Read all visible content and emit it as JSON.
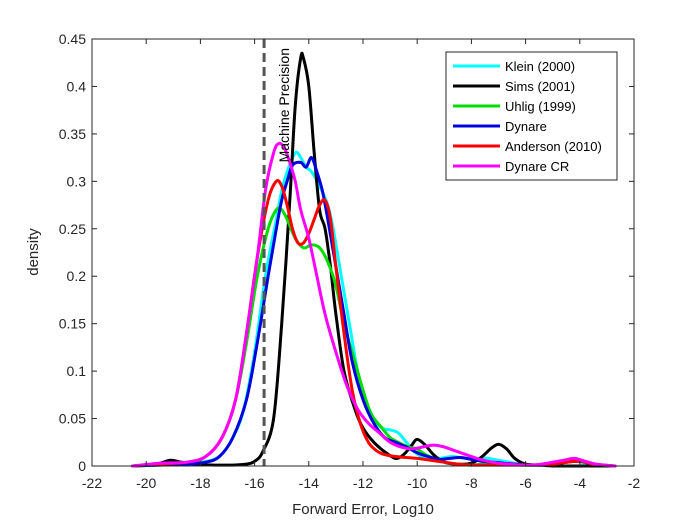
{
  "chart_data": {
    "type": "line",
    "xlabel": "Forward Error, Log10",
    "ylabel": "density",
    "xlim": [
      -22,
      -2
    ],
    "ylim": [
      0,
      0.45
    ],
    "xticks": [
      -22,
      -20,
      -18,
      -16,
      -14,
      -12,
      -10,
      -8,
      -6,
      -4,
      -2
    ],
    "yticks": [
      0,
      0.05,
      0.1,
      0.15,
      0.2,
      0.25,
      0.3,
      0.35,
      0.4,
      0.45
    ],
    "xtick_labels": [
      "-22",
      "-20",
      "-18",
      "-16",
      "-14",
      "-12",
      "-10",
      "-8",
      "-6",
      "-4",
      "-2"
    ],
    "ytick_labels": [
      "0",
      "0.05",
      "0.1",
      "0.15",
      "0.2",
      "0.25",
      "0.3",
      "0.35",
      "0.4",
      "0.45"
    ],
    "grid": false,
    "legend_position": "top-right",
    "annotation": {
      "text": "Machine Precision",
      "x": -15.65,
      "line_style": "dashed",
      "color": "#555555"
    },
    "series": [
      {
        "name": "Klein (2000)",
        "color": "#00ffff",
        "x": [
          -20.5,
          -19.5,
          -18.8,
          -18,
          -17.3,
          -16.8,
          -16.4,
          -16,
          -15.6,
          -15.2,
          -15,
          -14.8,
          -14.5,
          -14.3,
          -14.1,
          -13.9,
          -13.6,
          -13.3,
          -13.1,
          -12.8,
          -12.5,
          -12.2,
          -11.9,
          -11.6,
          -11.3,
          -11,
          -10.7,
          -10.4,
          -10.1,
          -9.7,
          -9.2,
          -8.7,
          -8.2,
          -7.8,
          -7.4,
          -7,
          -6.6,
          -6.2,
          -5.5,
          -4.8,
          -4.2,
          -3.6,
          -2.7
        ],
        "y": [
          0,
          0.002,
          0.004,
          0.004,
          0.01,
          0.03,
          0.06,
          0.12,
          0.2,
          0.26,
          0.29,
          0.31,
          0.33,
          0.325,
          0.315,
          0.31,
          0.295,
          0.275,
          0.25,
          0.2,
          0.15,
          0.1,
          0.07,
          0.05,
          0.04,
          0.038,
          0.035,
          0.025,
          0.015,
          0.008,
          0.008,
          0.01,
          0.008,
          0.008,
          0.008,
          0.006,
          0.004,
          0.002,
          0.001,
          0.004,
          0.005,
          0.002,
          0
        ]
      },
      {
        "name": "Sims (2001)",
        "color": "#000000",
        "x": [
          -20.5,
          -20,
          -19.5,
          -19.1,
          -18.7,
          -18.2,
          -17.5,
          -16.8,
          -16.3,
          -16,
          -15.7,
          -15.3,
          -15,
          -14.7,
          -14.5,
          -14.3,
          -14.2,
          -14,
          -13.8,
          -13.6,
          -13.4,
          -13.2,
          -13,
          -12.7,
          -12.3,
          -12,
          -11.6,
          -11.2,
          -10.8,
          -10.5,
          -10.2,
          -10,
          -9.7,
          -9.4,
          -9,
          -8.5,
          -8,
          -7.6,
          -7.3,
          -7,
          -6.7,
          -6.4,
          -6,
          -5.5,
          -5,
          -4.5,
          -4,
          -3.5,
          -2.7
        ],
        "y": [
          0,
          0.001,
          0.003,
          0.006,
          0.004,
          0.002,
          0.001,
          0.001,
          0.002,
          0.005,
          0.015,
          0.05,
          0.15,
          0.28,
          0.38,
          0.43,
          0.43,
          0.4,
          0.33,
          0.27,
          0.25,
          0.21,
          0.16,
          0.1,
          0.06,
          0.04,
          0.025,
          0.015,
          0.008,
          0.012,
          0.022,
          0.028,
          0.022,
          0.012,
          0.004,
          0.002,
          0.003,
          0.01,
          0.018,
          0.023,
          0.018,
          0.008,
          0.002,
          0.001,
          0,
          0,
          0,
          0,
          0
        ]
      },
      {
        "name": "Uhlig (1999)",
        "color": "#00dd00",
        "x": [
          -20.5,
          -19.5,
          -18.5,
          -17.8,
          -17.2,
          -16.7,
          -16.3,
          -15.9,
          -15.5,
          -15.2,
          -15,
          -14.8,
          -14.5,
          -14.2,
          -13.9,
          -13.6,
          -13.3,
          -13,
          -12.7,
          -12.3,
          -12,
          -11.7,
          -11.3,
          -11,
          -10.7,
          -10.3,
          -10,
          -9.7,
          -9.3,
          -9,
          -8.5,
          -8,
          -7.5,
          -7,
          -6.5,
          -6,
          -5.5,
          -5,
          -4.5,
          -4,
          -3.5,
          -2.7
        ],
        "y": [
          0,
          0.001,
          0.003,
          0.01,
          0.03,
          0.07,
          0.13,
          0.2,
          0.25,
          0.27,
          0.27,
          0.26,
          0.24,
          0.23,
          0.233,
          0.23,
          0.215,
          0.19,
          0.15,
          0.11,
          0.08,
          0.055,
          0.04,
          0.03,
          0.025,
          0.02,
          0.018,
          0.012,
          0.007,
          0.004,
          0.002,
          0.001,
          0.002,
          0.003,
          0.002,
          0.001,
          0.001,
          0.002,
          0.004,
          0.006,
          0.002,
          0
        ]
      },
      {
        "name": "Dynare",
        "color": "#0000dd",
        "x": [
          -20.5,
          -19.5,
          -18.5,
          -17.8,
          -17.3,
          -16.8,
          -16.3,
          -15.9,
          -15.5,
          -15.2,
          -15,
          -14.8,
          -14.6,
          -14.3,
          -14.1,
          -13.9,
          -13.7,
          -13.5,
          -13.3,
          -13,
          -12.7,
          -12.4,
          -12,
          -11.6,
          -11.2,
          -10.8,
          -10.4,
          -10,
          -9.6,
          -9.2,
          -8.8,
          -8.4,
          -8,
          -7.6,
          -7.2,
          -6.8,
          -6.4,
          -6,
          -5.5,
          -5,
          -4.5,
          -4,
          -3.5,
          -2.7
        ],
        "y": [
          0,
          0.001,
          0.002,
          0.004,
          0.01,
          0.03,
          0.07,
          0.13,
          0.2,
          0.25,
          0.28,
          0.3,
          0.317,
          0.32,
          0.315,
          0.325,
          0.31,
          0.29,
          0.26,
          0.21,
          0.16,
          0.11,
          0.07,
          0.045,
          0.03,
          0.025,
          0.02,
          0.014,
          0.01,
          0.007,
          0.008,
          0.009,
          0.007,
          0.005,
          0.004,
          0.003,
          0.002,
          0.001,
          0.001,
          0.002,
          0.004,
          0.005,
          0.002,
          0
        ]
      },
      {
        "name": "Anderson (2010)",
        "color": "#ff0000",
        "x": [
          -20.5,
          -19.5,
          -18.5,
          -17.8,
          -17.2,
          -16.7,
          -16.3,
          -15.9,
          -15.5,
          -15.2,
          -15,
          -14.8,
          -14.6,
          -14.4,
          -14.2,
          -14,
          -13.8,
          -13.6,
          -13.4,
          -13.2,
          -13,
          -12.7,
          -12.4,
          -12.1,
          -11.8,
          -11.5,
          -11.2,
          -10.8,
          -10.4,
          -10,
          -9.5,
          -9,
          -8.5,
          -8,
          -7.5,
          -7,
          -6.5,
          -6,
          -5.5,
          -5,
          -4.5,
          -4,
          -3.5,
          -2.7
        ],
        "y": [
          0,
          0.002,
          0.004,
          0.01,
          0.03,
          0.07,
          0.14,
          0.22,
          0.28,
          0.3,
          0.295,
          0.275,
          0.25,
          0.235,
          0.235,
          0.245,
          0.26,
          0.275,
          0.28,
          0.26,
          0.21,
          0.14,
          0.08,
          0.045,
          0.025,
          0.016,
          0.012,
          0.01,
          0.009,
          0.008,
          0.006,
          0.004,
          0.002,
          0.001,
          0.001,
          0.001,
          0.001,
          0.001,
          0.001,
          0.002,
          0.004,
          0.005,
          0.002,
          0
        ]
      },
      {
        "name": "Dynare CR",
        "color": "#ff00ff",
        "x": [
          -20.5,
          -19.5,
          -18.5,
          -17.8,
          -17.2,
          -16.7,
          -16.3,
          -15.9,
          -15.6,
          -15.3,
          -15.1,
          -14.9,
          -14.7,
          -14.5,
          -14.3,
          -14,
          -13.7,
          -13.4,
          -13,
          -12.6,
          -12.2,
          -11.8,
          -11.4,
          -11,
          -10.6,
          -10.2,
          -9.8,
          -9.4,
          -9,
          -8.6,
          -8.2,
          -7.8,
          -7.4,
          -7,
          -6.6,
          -6.2,
          -5.8,
          -5.4,
          -5,
          -4.6,
          -4.2,
          -3.8,
          -3.4,
          -2.7
        ],
        "y": [
          0,
          0.003,
          0.004,
          0.01,
          0.03,
          0.07,
          0.14,
          0.22,
          0.29,
          0.33,
          0.34,
          0.335,
          0.32,
          0.3,
          0.27,
          0.24,
          0.2,
          0.16,
          0.12,
          0.085,
          0.06,
          0.045,
          0.035,
          0.025,
          0.02,
          0.018,
          0.02,
          0.022,
          0.02,
          0.016,
          0.012,
          0.008,
          0.005,
          0.003,
          0.002,
          0.001,
          0.001,
          0.002,
          0.004,
          0.006,
          0.008,
          0.005,
          0.002,
          0
        ]
      }
    ]
  }
}
